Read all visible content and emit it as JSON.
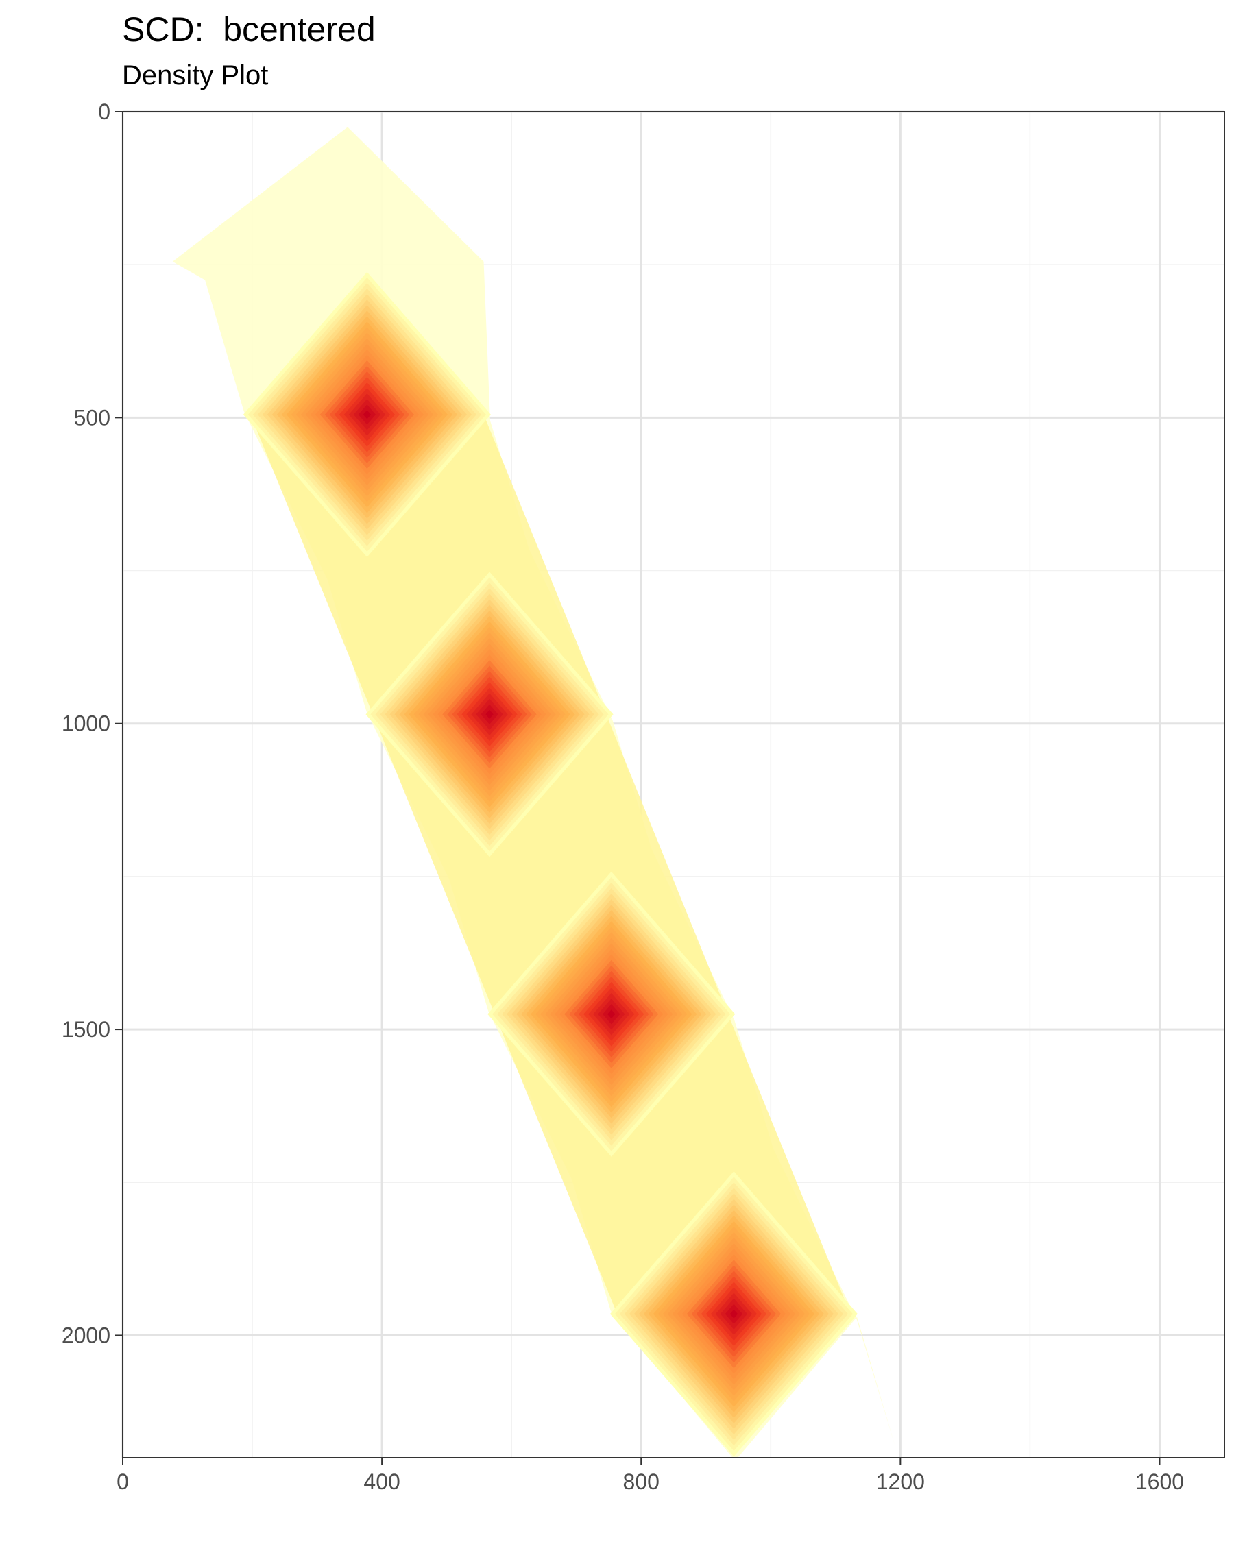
{
  "chart_data": {
    "type": "heatmap",
    "title": "SCD:  bcentered",
    "subtitle": "Density Plot",
    "xlabel": "",
    "ylabel": "",
    "xlim": [
      0,
      1700
    ],
    "ylim": [
      0,
      2200
    ],
    "y_reversed": true,
    "grid": true,
    "x_ticks": [
      0,
      400,
      800,
      1200,
      1600
    ],
    "x_tick_labels": [
      "0",
      "400",
      "800",
      "1200",
      "1600"
    ],
    "y_ticks": [
      0,
      500,
      1000,
      1500,
      2000
    ],
    "y_tick_labels": [
      "0",
      "500",
      "1000",
      "1500",
      "2000"
    ],
    "density_peaks": [
      {
        "x": 377,
        "y": 495
      },
      {
        "x": 566,
        "y": 985
      },
      {
        "x": 754,
        "y": 1475
      },
      {
        "x": 943,
        "y": 1965
      }
    ],
    "colors": {
      "high": "#c8001c",
      "mid": "#fd8d3c",
      "low": "#ffffb2",
      "grid_major": "#e3e3e3",
      "grid_minor": "#f1f1f1",
      "axis": "#333333"
    }
  }
}
